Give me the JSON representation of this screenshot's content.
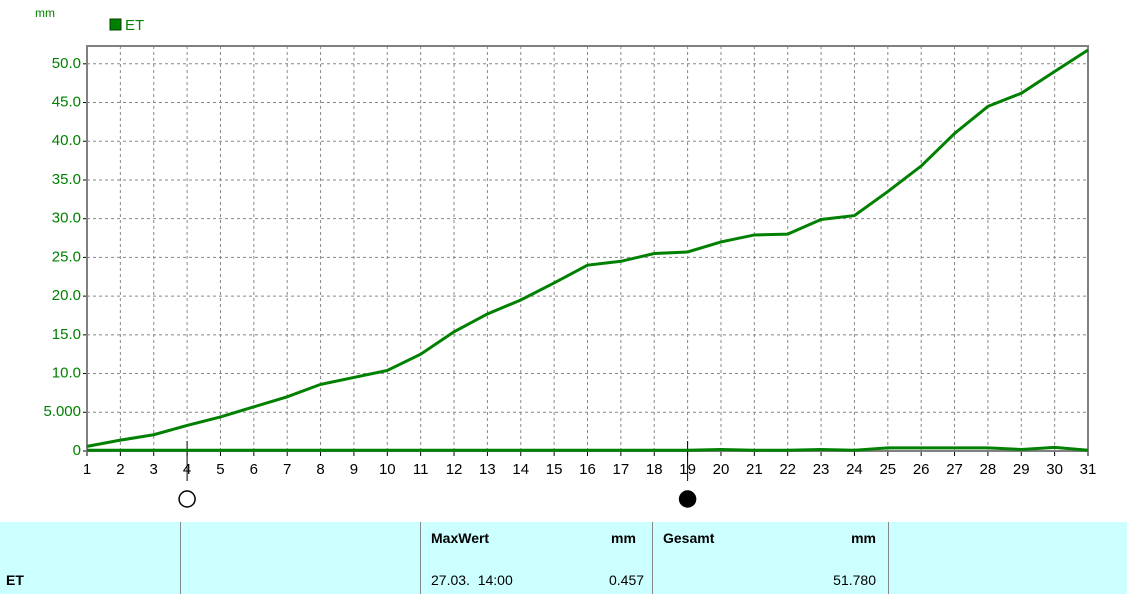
{
  "chart_data": {
    "type": "line",
    "y_unit": "mm",
    "x": [
      1,
      2,
      3,
      4,
      5,
      6,
      7,
      8,
      9,
      10,
      11,
      12,
      13,
      14,
      15,
      16,
      17,
      18,
      19,
      20,
      21,
      22,
      23,
      24,
      25,
      26,
      27,
      28,
      29,
      30,
      31
    ],
    "series": [
      {
        "name": "ET",
        "color": "#008000",
        "values": [
          0.6,
          1.4,
          2.1,
          3.3,
          4.4,
          5.7,
          7.0,
          8.6,
          9.5,
          10.4,
          12.5,
          15.4,
          17.7,
          19.5,
          21.7,
          24.0,
          24.5,
          25.5,
          25.7,
          27.0,
          27.9,
          28.0,
          29.9,
          30.4,
          33.5,
          36.8,
          41.0,
          44.5,
          46.2,
          49.0,
          51.78
        ]
      },
      {
        "color": "#008000",
        "values": [
          0.1,
          0.1,
          0.1,
          0.1,
          0.1,
          0.1,
          0.1,
          0.1,
          0.1,
          0.1,
          0.1,
          0.1,
          0.1,
          0.1,
          0.1,
          0.1,
          0.1,
          0.1,
          0.1,
          0.2,
          0.1,
          0.1,
          0.2,
          0.1,
          0.4,
          0.4,
          0.4,
          0.4,
          0.2,
          0.46,
          0.1
        ]
      }
    ],
    "xlim": [
      1,
      31
    ],
    "xticks": [
      1,
      2,
      3,
      4,
      5,
      6,
      7,
      8,
      9,
      10,
      11,
      12,
      13,
      14,
      15,
      16,
      17,
      18,
      19,
      20,
      21,
      22,
      23,
      24,
      25,
      26,
      27,
      28,
      29,
      30,
      31
    ],
    "ylim": [
      0,
      52.3
    ],
    "yticks": [
      0,
      {
        "value": 5,
        "label": "5.000"
      },
      {
        "value": 10,
        "label": "10.0"
      },
      {
        "value": 15,
        "label": "15.0"
      },
      {
        "value": 20,
        "label": "20.0"
      },
      {
        "value": 25,
        "label": "25.0"
      },
      {
        "value": 30,
        "label": "30.0"
      },
      {
        "value": 35,
        "label": "35.0"
      },
      {
        "value": 40,
        "label": "40.0"
      },
      {
        "value": 45,
        "label": "45.0"
      },
      {
        "value": 50,
        "label": "50.0"
      }
    ],
    "grid": true,
    "markers": [
      {
        "x": 4,
        "style": "open"
      },
      {
        "x": 19,
        "style": "filled"
      }
    ]
  },
  "table": {
    "row_label": "ET",
    "max": {
      "title": "MaxWert",
      "unit": "mm",
      "date": "27.03.  14:00",
      "value": "0.457"
    },
    "total": {
      "title": "Gesamt",
      "unit": "mm",
      "value": "51.780"
    }
  }
}
